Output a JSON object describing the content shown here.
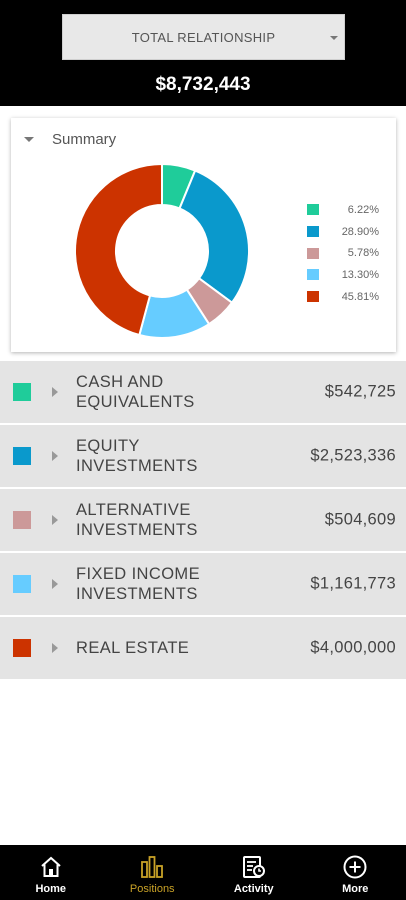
{
  "header": {
    "selector_label": "TOTAL RELATIONSHIP",
    "total_value": "$8,732,443"
  },
  "summary": {
    "title": "Summary",
    "legend": [
      {
        "label": "6.22%",
        "color": "#1fcc9a"
      },
      {
        "label": "28.90%",
        "color": "#0a99cc"
      },
      {
        "label": "5.78%",
        "color": "#cc9999"
      },
      {
        "label": "13.30%",
        "color": "#66ccff"
      },
      {
        "label": "45.81%",
        "color": "#cc3300"
      }
    ]
  },
  "chart_data": {
    "type": "pie",
    "donut": true,
    "categories": [
      "CASH AND EQUIVALENTS",
      "EQUITY INVESTMENTS",
      "ALTERNATIVE INVESTMENTS",
      "FIXED INCOME INVESTMENTS",
      "REAL ESTATE"
    ],
    "values": [
      6.22,
      28.9,
      5.78,
      13.3,
      45.81
    ],
    "colors": [
      "#1fcc9a",
      "#0a99cc",
      "#cc9999",
      "#66ccff",
      "#cc3300"
    ],
    "legend_position": "right"
  },
  "assets": [
    {
      "label": "CASH AND EQUIVALENTS",
      "amount": "$542,725",
      "color": "#1fcc9a"
    },
    {
      "label": "EQUITY INVESTMENTS",
      "amount": "$2,523,336",
      "color": "#0a99cc"
    },
    {
      "label": "ALTERNATIVE INVESTMENTS",
      "amount": "$504,609",
      "color": "#cc9999"
    },
    {
      "label": "FIXED INCOME INVESTMENTS",
      "amount": "$1,161,773",
      "color": "#66ccff"
    },
    {
      "label": "REAL ESTATE",
      "amount": "$4,000,000",
      "color": "#cc3300"
    }
  ],
  "nav": {
    "home": "Home",
    "positions": "Positions",
    "activity": "Activity",
    "more": "More",
    "active_color": "#c9a227"
  }
}
